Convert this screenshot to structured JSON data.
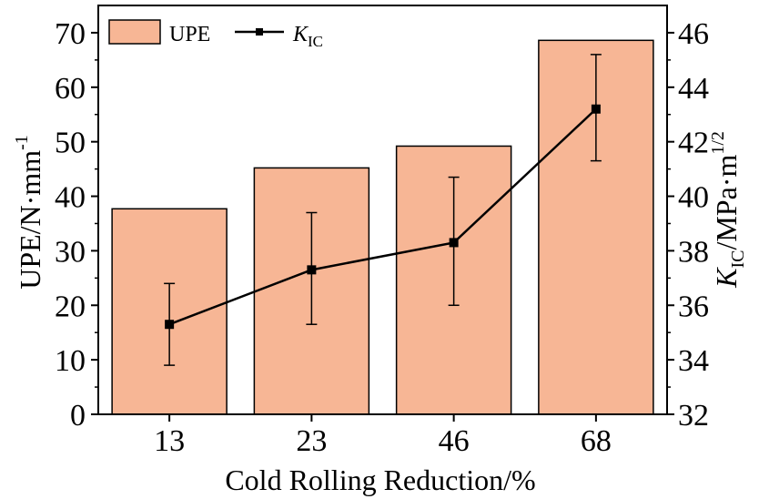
{
  "chart_data": {
    "type": "bar+line",
    "categories": [
      "13",
      "23",
      "46",
      "68"
    ],
    "xlabel": "Cold Rolling Reduction/%",
    "ylabel_left": {
      "prefix": "UPE/N·mm",
      "sup": "-1"
    },
    "ylabel_right": {
      "main": "K",
      "sub": "IC",
      "rest": "/MPa·m",
      "sup": "1/2"
    },
    "y_left": {
      "min": 0,
      "max": 75,
      "ticks": [
        0,
        10,
        20,
        30,
        40,
        50,
        60,
        70
      ]
    },
    "y_right": {
      "min": 32,
      "max": 47,
      "ticks": [
        32,
        34,
        36,
        38,
        40,
        42,
        44,
        46
      ]
    },
    "series": [
      {
        "name": "UPE",
        "type": "bar",
        "axis": "left",
        "values": [
          37.7,
          45.2,
          49.2,
          68.6
        ]
      },
      {
        "name": "KIC",
        "type": "line",
        "axis": "right",
        "values": [
          35.3,
          37.3,
          38.3,
          43.2
        ],
        "errors": [
          [
            33.8,
            36.8
          ],
          [
            35.3,
            39.4
          ],
          [
            36.0,
            40.7
          ],
          [
            41.3,
            45.2
          ]
        ]
      }
    ],
    "legend": {
      "position": "top-left",
      "items": [
        {
          "label": "UPE",
          "kind": "bar"
        },
        {
          "label_main": "K",
          "label_sub": "IC",
          "kind": "line-marker"
        }
      ]
    },
    "colors": {
      "bar_fill": "#F7B695",
      "bar_stroke": "#000000",
      "line": "#000000",
      "axis": "#000000"
    }
  }
}
